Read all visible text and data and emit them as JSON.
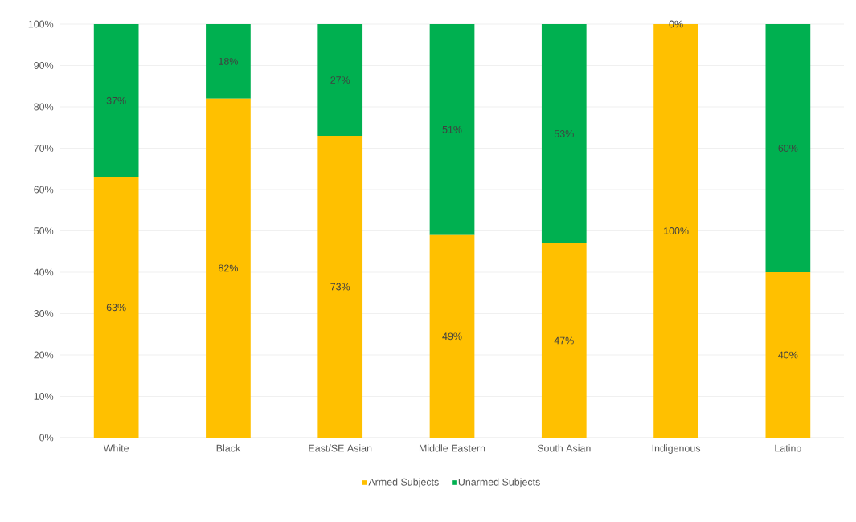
{
  "chart_data": {
    "type": "bar",
    "stacked": true,
    "categories": [
      "White",
      "Black",
      "East/SE Asian",
      "Middle Eastern",
      "South Asian",
      "Indigenous",
      "Latino"
    ],
    "series": [
      {
        "name": "Armed Subjects",
        "color": "#ffc000",
        "values": [
          63,
          82,
          73,
          49,
          47,
          100,
          40
        ],
        "value_labels": [
          "63%",
          "82%",
          "73%",
          "49%",
          "47%",
          "100%",
          "40%"
        ]
      },
      {
        "name": "Unarmed Subjects",
        "color": "#00b050",
        "values": [
          37,
          18,
          27,
          51,
          53,
          0,
          60
        ],
        "value_labels": [
          "37%",
          "18%",
          "27%",
          "51%",
          "53%",
          "0%",
          "60%"
        ]
      }
    ],
    "ylim": [
      0,
      100
    ],
    "yticks": [
      {
        "value": 0,
        "label": "0%"
      },
      {
        "value": 10,
        "label": "10%"
      },
      {
        "value": 20,
        "label": "20%"
      },
      {
        "value": 30,
        "label": "30%"
      },
      {
        "value": 40,
        "label": "40%"
      },
      {
        "value": 50,
        "label": "50%"
      },
      {
        "value": 60,
        "label": "60%"
      },
      {
        "value": 70,
        "label": "70%"
      },
      {
        "value": 80,
        "label": "80%"
      },
      {
        "value": 90,
        "label": "90%"
      },
      {
        "value": 100,
        "label": "100%"
      }
    ],
    "grid": "y",
    "legend": "bottom"
  }
}
